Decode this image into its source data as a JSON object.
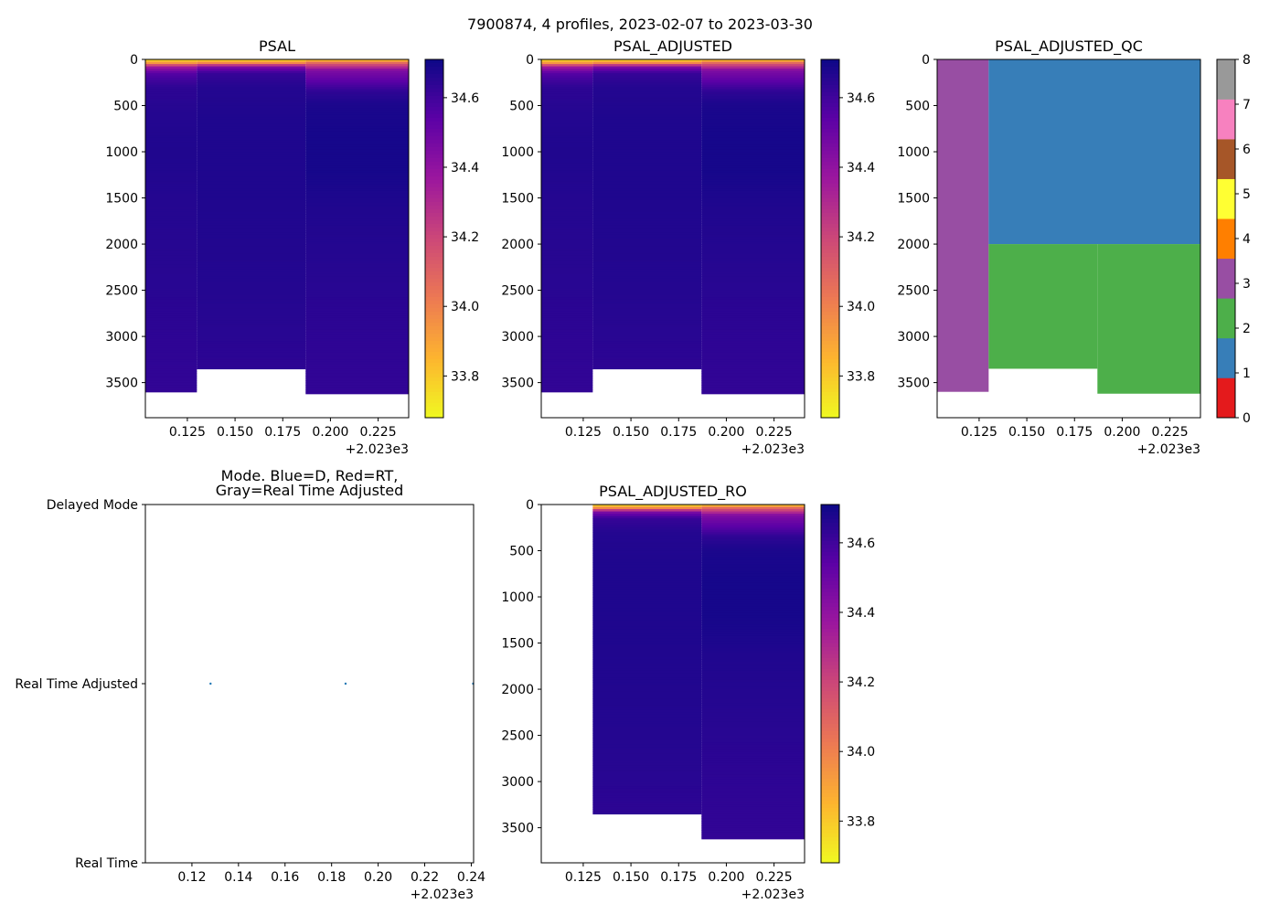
{
  "figure": {
    "suptitle": "7900874, 4 profiles, 2023-02-07 to 2023-03-30"
  },
  "colors": {
    "cmap_plasma_r": [
      "#f0f921",
      "#fdb42f",
      "#ed7953",
      "#cc4778",
      "#9c179e",
      "#5c01a6",
      "#0d0887"
    ],
    "qc_palette": [
      "#e41a1c",
      "#377eb8",
      "#4daf4a",
      "#984ea3",
      "#ff7f00",
      "#ffff33",
      "#a65628",
      "#f781bf",
      "#999999"
    ],
    "mode_point": "#1f77b4"
  },
  "chart_data": [
    {
      "id": "psal",
      "type": "heatmap",
      "title": "PSAL",
      "x_offset_label": "+2.023e3",
      "xlim": [
        2023.103,
        2023.241
      ],
      "ylim": [
        3880,
        0
      ],
      "xticks": [
        0.125,
        0.15,
        0.175,
        0.2,
        0.225
      ],
      "xtick_labels": [
        "0.125",
        "0.150",
        "0.175",
        "0.200",
        "0.225"
      ],
      "yticks": [
        0,
        500,
        1000,
        1500,
        2000,
        2500,
        3000,
        3500
      ],
      "columns": [
        {
          "x0": 2023.103,
          "x1": 2023.13,
          "max_depth": 3600
        },
        {
          "x0": 2023.13,
          "x1": 2023.187,
          "max_depth": 3350
        },
        {
          "x0": 2023.187,
          "x1": 2023.241,
          "max_depth": 3620
        }
      ],
      "profiles": [
        [
          [
            0,
            33.72
          ],
          [
            40,
            33.95
          ],
          [
            80,
            34.35
          ],
          [
            150,
            34.55
          ],
          [
            300,
            34.64
          ],
          [
            600,
            34.66
          ],
          [
            1000,
            34.67
          ],
          [
            1500,
            34.66
          ],
          [
            2500,
            34.65
          ],
          [
            3000,
            34.64
          ],
          [
            3600,
            34.63
          ]
        ],
        [
          [
            0,
            33.72
          ],
          [
            40,
            34.0
          ],
          [
            80,
            34.45
          ],
          [
            150,
            34.62
          ],
          [
            300,
            34.66
          ],
          [
            600,
            34.67
          ],
          [
            1000,
            34.67
          ],
          [
            1500,
            34.67
          ],
          [
            2500,
            34.66
          ],
          [
            3000,
            34.65
          ],
          [
            3350,
            34.64
          ]
        ],
        [
          [
            0,
            33.75
          ],
          [
            40,
            34.1
          ],
          [
            120,
            34.45
          ],
          [
            250,
            34.55
          ],
          [
            350,
            34.64
          ],
          [
            500,
            34.68
          ],
          [
            800,
            34.69
          ],
          [
            1200,
            34.69
          ],
          [
            1600,
            34.67
          ],
          [
            2500,
            34.65
          ],
          [
            3000,
            34.64
          ],
          [
            3620,
            34.63
          ]
        ]
      ],
      "colorbar": {
        "vmin": 33.68,
        "vmax": 34.71,
        "ticks": [
          33.8,
          34.0,
          34.2,
          34.4,
          34.6
        ],
        "tick_labels": [
          "33.8",
          "34.0",
          "34.2",
          "34.4",
          "34.6"
        ]
      }
    },
    {
      "id": "psal_adj",
      "type": "heatmap",
      "title": "PSAL_ADJUSTED",
      "x_offset_label": "+2.023e3",
      "xlim": [
        2023.103,
        2023.241
      ],
      "ylim": [
        3880,
        0
      ],
      "xticks": [
        0.125,
        0.15,
        0.175,
        0.2,
        0.225
      ],
      "xtick_labels": [
        "0.125",
        "0.150",
        "0.175",
        "0.200",
        "0.225"
      ],
      "yticks": [
        0,
        500,
        1000,
        1500,
        2000,
        2500,
        3000,
        3500
      ],
      "columns": [
        {
          "x0": 2023.103,
          "x1": 2023.13,
          "max_depth": 3600
        },
        {
          "x0": 2023.13,
          "x1": 2023.187,
          "max_depth": 3350
        },
        {
          "x0": 2023.187,
          "x1": 2023.241,
          "max_depth": 3620
        }
      ],
      "profiles": [
        [
          [
            0,
            33.72
          ],
          [
            40,
            33.95
          ],
          [
            80,
            34.35
          ],
          [
            150,
            34.55
          ],
          [
            300,
            34.64
          ],
          [
            600,
            34.66
          ],
          [
            1000,
            34.67
          ],
          [
            1500,
            34.66
          ],
          [
            2500,
            34.65
          ],
          [
            3000,
            34.64
          ],
          [
            3600,
            34.63
          ]
        ],
        [
          [
            0,
            33.72
          ],
          [
            40,
            34.0
          ],
          [
            80,
            34.45
          ],
          [
            150,
            34.62
          ],
          [
            300,
            34.66
          ],
          [
            600,
            34.67
          ],
          [
            1000,
            34.67
          ],
          [
            1500,
            34.67
          ],
          [
            2500,
            34.66
          ],
          [
            3000,
            34.65
          ],
          [
            3350,
            34.64
          ]
        ],
        [
          [
            0,
            33.75
          ],
          [
            40,
            34.1
          ],
          [
            120,
            34.45
          ],
          [
            250,
            34.55
          ],
          [
            350,
            34.64
          ],
          [
            500,
            34.68
          ],
          [
            800,
            34.69
          ],
          [
            1200,
            34.69
          ],
          [
            1600,
            34.67
          ],
          [
            2500,
            34.65
          ],
          [
            3000,
            34.64
          ],
          [
            3620,
            34.63
          ]
        ]
      ],
      "colorbar": {
        "vmin": 33.68,
        "vmax": 34.71,
        "ticks": [
          33.8,
          34.0,
          34.2,
          34.4,
          34.6
        ],
        "tick_labels": [
          "33.8",
          "34.0",
          "34.2",
          "34.4",
          "34.6"
        ]
      }
    },
    {
      "id": "psal_adj_qc",
      "type": "heatmap",
      "title": "PSAL_ADJUSTED_QC",
      "x_offset_label": "+2.023e3",
      "xlim": [
        2023.103,
        2023.241
      ],
      "ylim": [
        3880,
        0
      ],
      "xticks": [
        0.125,
        0.15,
        0.175,
        0.2,
        0.225
      ],
      "xtick_labels": [
        "0.125",
        "0.150",
        "0.175",
        "0.200",
        "0.225"
      ],
      "yticks": [
        0,
        500,
        1000,
        1500,
        2000,
        2500,
        3000,
        3500
      ],
      "cells": [
        {
          "x0": 2023.103,
          "x1": 2023.13,
          "d0": 0,
          "d1": 3600,
          "qc": 3
        },
        {
          "x0": 2023.13,
          "x1": 2023.241,
          "d0": 0,
          "d1": 2000,
          "qc": 1
        },
        {
          "x0": 2023.13,
          "x1": 2023.187,
          "d0": 2000,
          "d1": 3350,
          "qc": 2
        },
        {
          "x0": 2023.187,
          "x1": 2023.241,
          "d0": 2000,
          "d1": 3620,
          "qc": 2
        }
      ],
      "colorbar": {
        "vmin": 0,
        "vmax": 8,
        "ticks": [
          0,
          1,
          2,
          3,
          4,
          5,
          6,
          7,
          8
        ],
        "tick_labels": [
          "0",
          "1",
          "2",
          "3",
          "4",
          "5",
          "6",
          "7",
          "8"
        ]
      }
    },
    {
      "id": "mode",
      "type": "scatter",
      "title": "Mode. Blue=D, Red=RT,",
      "title2": "Gray=Real Time Adjusted",
      "x_offset_label": "+2.023e3",
      "xlim": [
        2023.1,
        2023.241
      ],
      "ylim": [
        0,
        2
      ],
      "xticks": [
        0.12,
        0.14,
        0.16,
        0.18,
        0.2,
        0.22,
        0.24
      ],
      "xtick_labels": [
        "0.12",
        "0.14",
        "0.16",
        "0.18",
        "0.20",
        "0.22",
        "0.24"
      ],
      "yticks": [
        2,
        1,
        0
      ],
      "ytick_labels": [
        "Delayed Mode",
        "Real Time Adjusted",
        "Real Time"
      ],
      "points": [
        {
          "x": 2023.128,
          "y": 1
        },
        {
          "x": 2023.186,
          "y": 1
        },
        {
          "x": 2023.241,
          "y": 1
        }
      ]
    },
    {
      "id": "psal_adj_ro",
      "type": "heatmap",
      "title": "PSAL_ADJUSTED_RO",
      "x_offset_label": "+2.023e3",
      "xlim": [
        2023.103,
        2023.241
      ],
      "ylim": [
        3880,
        0
      ],
      "xticks": [
        0.125,
        0.15,
        0.175,
        0.2,
        0.225
      ],
      "xtick_labels": [
        "0.125",
        "0.150",
        "0.175",
        "0.200",
        "0.225"
      ],
      "yticks": [
        0,
        500,
        1000,
        1500,
        2000,
        2500,
        3000,
        3500
      ],
      "columns": [
        {
          "x0": 2023.13,
          "x1": 2023.187,
          "max_depth": 3350
        },
        {
          "x0": 2023.187,
          "x1": 2023.241,
          "max_depth": 3620
        }
      ],
      "profiles": [
        [
          [
            0,
            33.72
          ],
          [
            40,
            34.0
          ],
          [
            80,
            34.45
          ],
          [
            150,
            34.62
          ],
          [
            300,
            34.66
          ],
          [
            600,
            34.67
          ],
          [
            1000,
            34.67
          ],
          [
            1500,
            34.67
          ],
          [
            2500,
            34.66
          ],
          [
            3000,
            34.65
          ],
          [
            3350,
            34.64
          ]
        ],
        [
          [
            0,
            33.75
          ],
          [
            40,
            34.1
          ],
          [
            120,
            34.45
          ],
          [
            250,
            34.55
          ],
          [
            350,
            34.64
          ],
          [
            500,
            34.68
          ],
          [
            800,
            34.69
          ],
          [
            1200,
            34.69
          ],
          [
            1600,
            34.67
          ],
          [
            2500,
            34.65
          ],
          [
            3000,
            34.64
          ],
          [
            3620,
            34.63
          ]
        ]
      ],
      "colorbar": {
        "vmin": 33.68,
        "vmax": 34.71,
        "ticks": [
          33.8,
          34.0,
          34.2,
          34.4,
          34.6
        ],
        "tick_labels": [
          "33.8",
          "34.0",
          "34.2",
          "34.4",
          "34.6"
        ]
      }
    }
  ]
}
